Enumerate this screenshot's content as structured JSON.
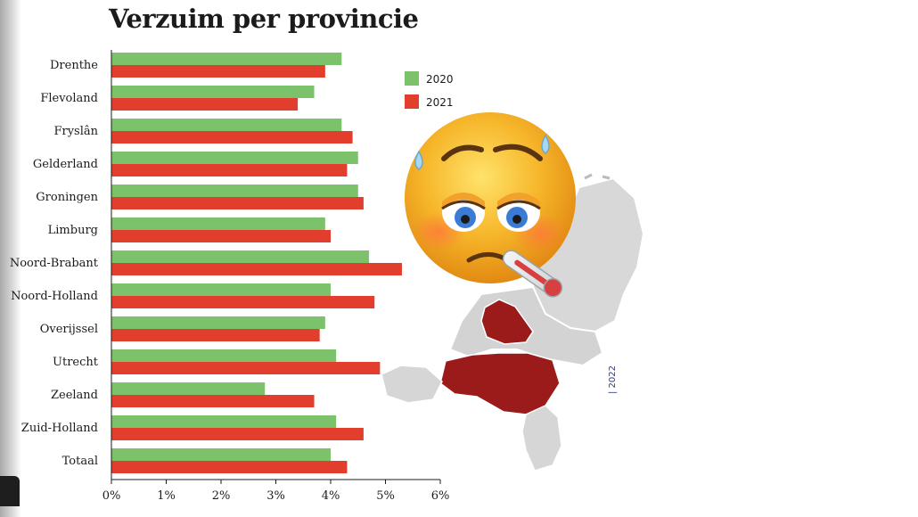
{
  "title": "Verzuim per provincie",
  "chart_data": {
    "type": "bar",
    "orientation": "horizontal",
    "title": "Verzuim per provincie",
    "categories": [
      "Drenthe",
      "Flevoland",
      "Fryslân",
      "Gelderland",
      "Groningen",
      "Limburg",
      "Noord-Brabant",
      "Noord-Holland",
      "Overijssel",
      "Utrecht",
      "Zeeland",
      "Zuid-Holland",
      "Totaal"
    ],
    "series": [
      {
        "name": "2020",
        "color": "#7cc26a",
        "values": [
          4.2,
          3.7,
          4.2,
          4.5,
          4.5,
          3.9,
          4.7,
          4.0,
          3.9,
          4.1,
          2.8,
          4.1,
          4.0
        ]
      },
      {
        "name": "2021",
        "color": "#e23e2e",
        "values": [
          3.9,
          3.4,
          4.4,
          4.3,
          4.6,
          4.0,
          5.3,
          4.8,
          3.8,
          4.9,
          3.7,
          4.6,
          4.3
        ]
      }
    ],
    "xlim": [
      0,
      6
    ],
    "ticks": [
      "0%",
      "1%",
      "2%",
      "3%",
      "4%",
      "5%",
      "6%"
    ],
    "xlabel": "",
    "ylabel": "",
    "legend_position": "top-right",
    "grid": false
  },
  "credit": {
    "text": "| 2022"
  },
  "illustration": {
    "emoji": "sick-face-with-thermometer-icon",
    "map": "netherlands-province-map"
  }
}
